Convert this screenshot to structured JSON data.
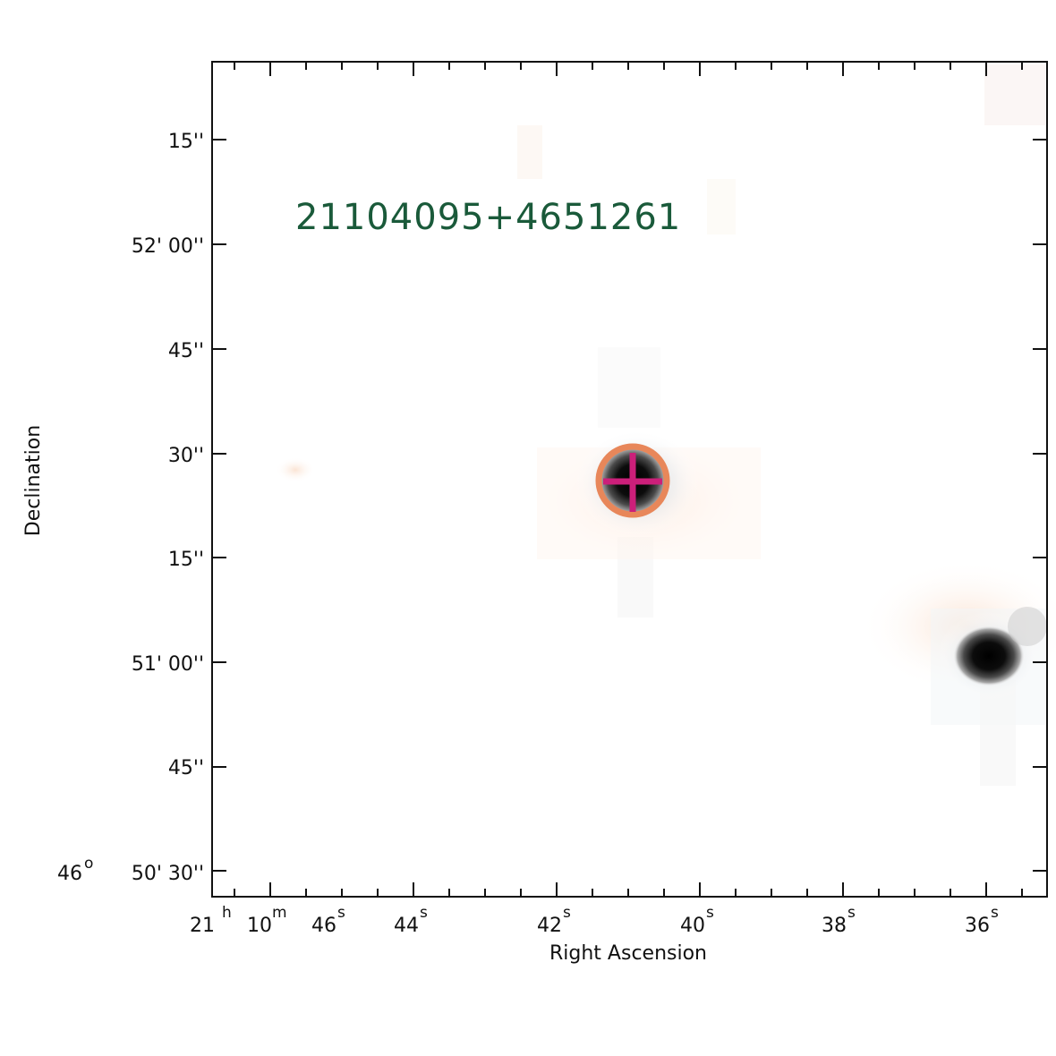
{
  "object_id": "21104095+4651261",
  "colors": {
    "label": "#1a5a3a",
    "ring": "#e8875a",
    "crosshair": "#cc1f7a",
    "frame": "#111111",
    "faint_halo": "#f7cdb0"
  },
  "axes": {
    "xlabel": "Right Ascension",
    "ylabel": "Declination",
    "ra_ticks": [
      {
        "hours_sup": "h",
        "hours": "21",
        "minutes": "10",
        "minutes_sup": "m",
        "seconds": "46",
        "seconds_sup": "s"
      },
      {
        "seconds": "44",
        "seconds_sup": "s"
      },
      {
        "seconds": "42",
        "seconds_sup": "s"
      },
      {
        "seconds": "40",
        "seconds_sup": "s"
      },
      {
        "seconds": "38",
        "seconds_sup": "s"
      },
      {
        "seconds": "36",
        "seconds_sup": "s"
      }
    ],
    "dec_ticks": [
      {
        "label": "15''"
      },
      {
        "label": "52' 00''"
      },
      {
        "label": "45''"
      },
      {
        "label": "30''"
      },
      {
        "label": "15''"
      },
      {
        "label": "51' 00''"
      },
      {
        "label": "45''"
      },
      {
        "label": "46",
        "deg_sup": "o",
        "rest": "50' 30''"
      }
    ]
  }
}
